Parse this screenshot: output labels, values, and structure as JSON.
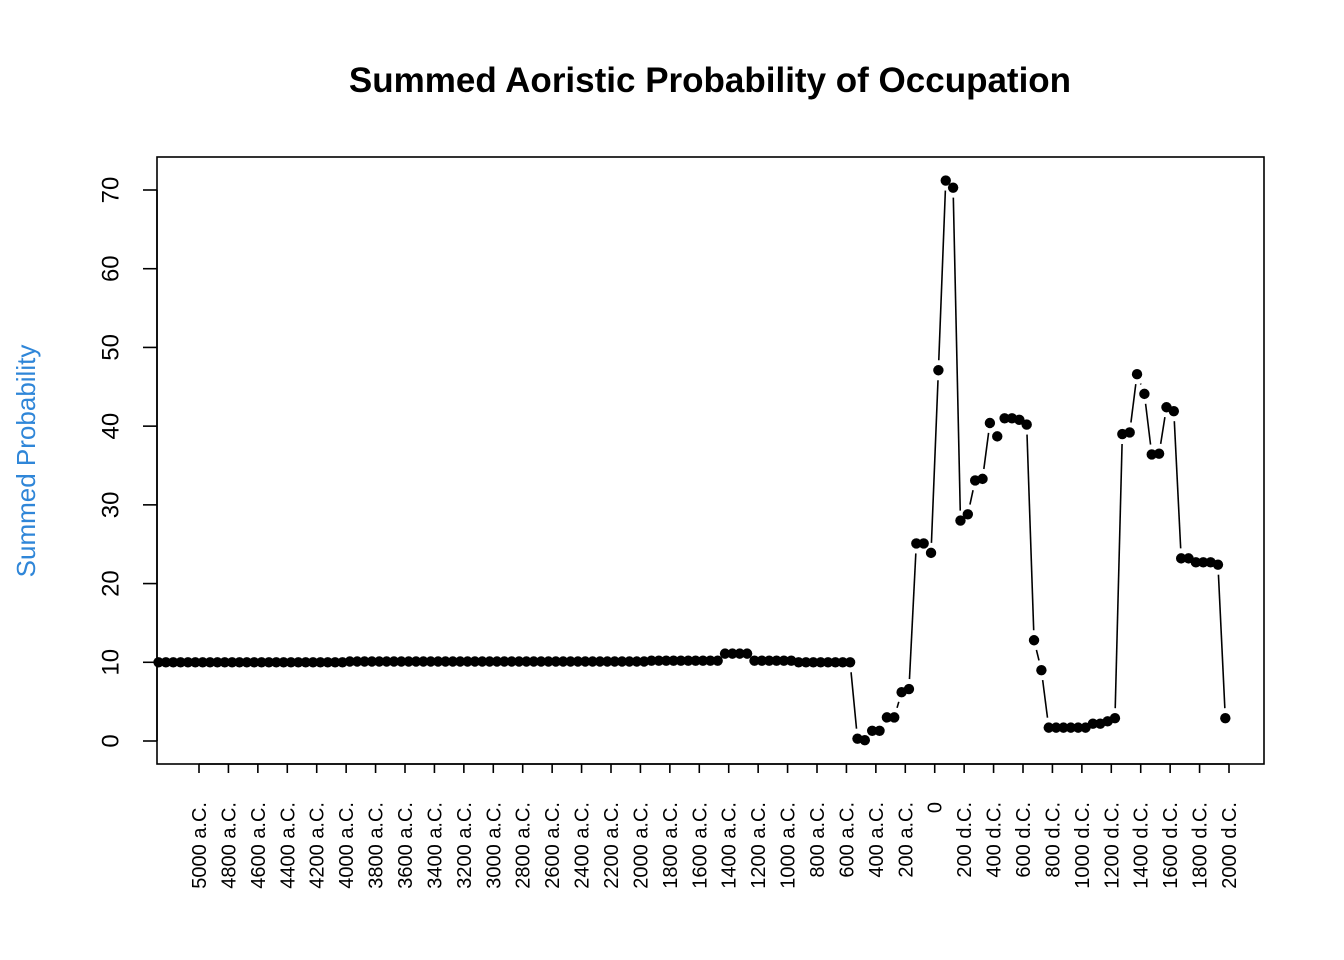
{
  "chart_data": {
    "type": "line",
    "title": "Summed Aoristic Probability of Occupation",
    "xlabel": "",
    "ylabel": "Summed Probability",
    "ylim": [
      0,
      70
    ],
    "y_ticks": [
      0,
      10,
      20,
      30,
      40,
      50,
      60,
      70
    ],
    "x_ticks": [
      {
        "x": -5000,
        "label": "5000 a.C."
      },
      {
        "x": -4800,
        "label": "4800 a.C."
      },
      {
        "x": -4600,
        "label": "4600 a.C."
      },
      {
        "x": -4400,
        "label": "4400 a.C."
      },
      {
        "x": -4200,
        "label": "4200 a.C."
      },
      {
        "x": -4000,
        "label": "4000 a.C."
      },
      {
        "x": -3800,
        "label": "3800 a.C."
      },
      {
        "x": -3600,
        "label": "3600 a.C."
      },
      {
        "x": -3400,
        "label": "3400 a.C."
      },
      {
        "x": -3200,
        "label": "3200 a.C."
      },
      {
        "x": -3000,
        "label": "3000 a.C."
      },
      {
        "x": -2800,
        "label": "2800 a.C."
      },
      {
        "x": -2600,
        "label": "2600 a.C."
      },
      {
        "x": -2400,
        "label": "2400 a.C."
      },
      {
        "x": -2200,
        "label": "2200 a.C."
      },
      {
        "x": -2000,
        "label": "2000 a.C."
      },
      {
        "x": -1800,
        "label": "1800 a.C."
      },
      {
        "x": -1600,
        "label": "1600 a.C."
      },
      {
        "x": -1400,
        "label": "1400 a.C."
      },
      {
        "x": -1200,
        "label": "1200 a.C."
      },
      {
        "x": -1000,
        "label": "1000 a.C."
      },
      {
        "x": -800,
        "label": "800 a.C."
      },
      {
        "x": -600,
        "label": "600 a.C."
      },
      {
        "x": -400,
        "label": "400 a.C."
      },
      {
        "x": -200,
        "label": "200 a.C."
      },
      {
        "x": 0,
        "label": "0"
      },
      {
        "x": 200,
        "label": "200 d.C."
      },
      {
        "x": 400,
        "label": "400 d.C."
      },
      {
        "x": 600,
        "label": "600 d.C."
      },
      {
        "x": 800,
        "label": "800 d.C."
      },
      {
        "x": 1000,
        "label": "1000 d.C."
      },
      {
        "x": 1200,
        "label": "1200 d.C."
      },
      {
        "x": 1400,
        "label": "1400 d.C."
      },
      {
        "x": 1600,
        "label": "1600 d.C."
      },
      {
        "x": 1800,
        "label": "1800 d.C."
      },
      {
        "x": 2000,
        "label": "2000 d.C."
      }
    ],
    "x_step": 50,
    "x_start": -5275,
    "values": [
      10.0,
      10.0,
      10.0,
      10.0,
      10.0,
      10.0,
      10.0,
      10.0,
      10.0,
      10.0,
      10.0,
      10.0,
      10.0,
      10.0,
      10.0,
      10.0,
      10.0,
      10.0,
      10.0,
      10.0,
      10.0,
      10.0,
      10.0,
      10.0,
      10.0,
      10.0,
      10.1,
      10.1,
      10.1,
      10.1,
      10.1,
      10.1,
      10.1,
      10.1,
      10.1,
      10.1,
      10.1,
      10.1,
      10.1,
      10.1,
      10.1,
      10.1,
      10.1,
      10.1,
      10.1,
      10.1,
      10.1,
      10.1,
      10.1,
      10.1,
      10.1,
      10.1,
      10.1,
      10.1,
      10.1,
      10.1,
      10.1,
      10.1,
      10.1,
      10.1,
      10.1,
      10.1,
      10.1,
      10.1,
      10.1,
      10.1,
      10.1,
      10.2,
      10.2,
      10.2,
      10.2,
      10.2,
      10.2,
      10.2,
      10.2,
      10.2,
      10.2,
      11.1,
      11.1,
      11.1,
      11.1,
      10.2,
      10.2,
      10.2,
      10.2,
      10.2,
      10.2,
      10.0,
      10.0,
      10.0,
      10.0,
      10.0,
      10.0,
      10.0,
      10.0,
      0.3,
      0.1,
      1.3,
      1.3,
      3.0,
      3.0,
      6.2,
      6.6,
      25.1,
      25.1,
      23.9,
      47.1,
      71.2,
      70.3,
      28.0,
      28.8,
      33.1,
      33.3,
      40.4,
      38.7,
      41.0,
      41.0,
      40.8,
      40.2,
      12.8,
      9.0,
      1.7,
      1.7,
      1.7,
      1.7,
      1.7,
      1.7,
      2.2,
      2.2,
      2.5,
      2.9,
      39.0,
      39.2,
      46.6,
      44.1,
      36.4,
      36.5,
      42.4,
      41.9,
      23.2,
      23.2,
      22.7,
      22.7,
      22.7,
      22.4,
      2.9
    ],
    "connect": [
      true,
      true,
      true,
      true,
      true,
      true,
      true,
      true,
      true,
      true,
      true,
      true,
      true,
      true,
      true,
      true,
      true,
      true,
      true,
      true,
      true,
      true,
      true,
      true,
      true,
      true,
      true,
      true,
      true,
      true,
      true,
      true,
      true,
      true,
      true,
      true,
      true,
      true,
      true,
      true,
      true,
      true,
      true,
      true,
      true,
      true,
      true,
      true,
      true,
      true,
      true,
      true,
      true,
      true,
      true,
      true,
      true,
      true,
      true,
      true,
      true,
      true,
      true,
      true,
      true,
      true,
      true,
      true,
      true,
      true,
      true,
      true,
      true,
      true,
      true,
      true,
      true,
      true,
      true,
      true,
      true,
      true,
      true,
      true,
      true,
      true,
      true,
      true,
      true,
      true,
      true,
      true,
      true,
      true,
      true,
      true,
      true,
      true,
      true,
      true,
      true,
      true,
      true,
      true,
      true,
      true,
      true,
      true,
      true,
      true,
      true,
      true,
      true,
      true,
      true,
      true,
      true,
      true,
      true,
      true,
      true,
      true,
      true,
      true,
      true,
      true,
      true,
      true,
      true,
      true,
      true,
      true,
      true,
      true,
      true,
      true,
      true,
      true,
      true,
      true,
      true,
      true,
      true,
      true,
      true
    ],
    "grid": false,
    "ylabel_color": "#2f86d8",
    "point_color": "#000000",
    "line_color": "#000000"
  }
}
